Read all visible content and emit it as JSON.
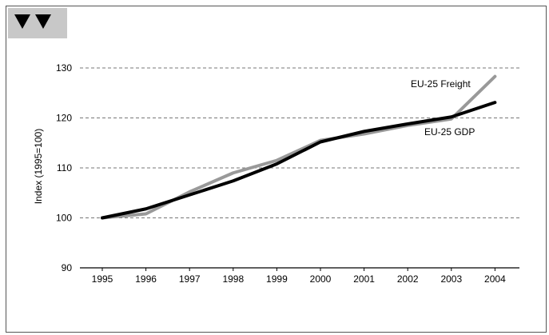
{
  "badge": {
    "icon": "double-down-triangle-icon",
    "color": "#c8c8c8"
  },
  "chart_data": {
    "type": "line",
    "title": "",
    "xlabel": "",
    "ylabel": "Index (1995=100)",
    "ylim": [
      90,
      130
    ],
    "yticks": [
      90,
      100,
      110,
      120,
      130
    ],
    "grid": "dashed-horizontal",
    "categories": [
      "1995",
      "1996",
      "1997",
      "1998",
      "1999",
      "2000",
      "2001",
      "2002",
      "2003",
      "2004"
    ],
    "series": [
      {
        "name": "EU-25 Freight",
        "color": "#999999",
        "values": [
          100,
          100.8,
          105.2,
          109.0,
          111.5,
          115.5,
          116.8,
          118.5,
          119.8,
          128.3
        ]
      },
      {
        "name": "EU-25 GDP",
        "color": "#000000",
        "values": [
          100,
          101.8,
          104.6,
          107.4,
          110.8,
          115.2,
          117.3,
          118.8,
          120.2,
          123.1
        ]
      }
    ]
  }
}
